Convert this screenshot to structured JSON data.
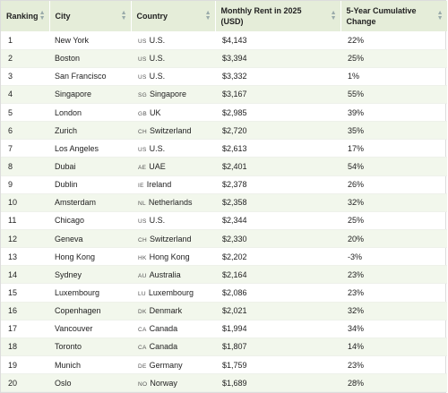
{
  "table": {
    "headers": [
      {
        "label": "Ranking"
      },
      {
        "label": "City"
      },
      {
        "label": "Country"
      },
      {
        "label": "Monthly Rent in 2025 (USD)"
      },
      {
        "label": "5-Year Cumulative Change"
      }
    ],
    "rows": [
      {
        "rank": "1",
        "city": "New York",
        "cc": "US",
        "country": "U.S.",
        "rent": "$4,143",
        "change": "22%"
      },
      {
        "rank": "2",
        "city": "Boston",
        "cc": "US",
        "country": "U.S.",
        "rent": "$3,394",
        "change": "25%"
      },
      {
        "rank": "3",
        "city": "San Francisco",
        "cc": "US",
        "country": "U.S.",
        "rent": "$3,332",
        "change": "1%"
      },
      {
        "rank": "4",
        "city": "Singapore",
        "cc": "SG",
        "country": "Singapore",
        "rent": "$3,167",
        "change": "55%"
      },
      {
        "rank": "5",
        "city": "London",
        "cc": "GB",
        "country": "UK",
        "rent": "$2,985",
        "change": "39%"
      },
      {
        "rank": "6",
        "city": "Zurich",
        "cc": "CH",
        "country": "Switzerland",
        "rent": "$2,720",
        "change": "35%"
      },
      {
        "rank": "7",
        "city": "Los Angeles",
        "cc": "US",
        "country": "U.S.",
        "rent": "$2,613",
        "change": "17%"
      },
      {
        "rank": "8",
        "city": "Dubai",
        "cc": "AE",
        "country": "UAE",
        "rent": "$2,401",
        "change": "54%"
      },
      {
        "rank": "9",
        "city": "Dublin",
        "cc": "IE",
        "country": "Ireland",
        "rent": "$2,378",
        "change": "26%"
      },
      {
        "rank": "10",
        "city": "Amsterdam",
        "cc": "NL",
        "country": "Netherlands",
        "rent": "$2,358",
        "change": "32%"
      },
      {
        "rank": "11",
        "city": "Chicago",
        "cc": "US",
        "country": "U.S.",
        "rent": "$2,344",
        "change": "25%"
      },
      {
        "rank": "12",
        "city": "Geneva",
        "cc": "CH",
        "country": "Switzerland",
        "rent": "$2,330",
        "change": "20%"
      },
      {
        "rank": "13",
        "city": "Hong Kong",
        "cc": "HK",
        "country": "Hong Kong",
        "rent": "$2,202",
        "change": "-3%"
      },
      {
        "rank": "14",
        "city": "Sydney",
        "cc": "AU",
        "country": "Australia",
        "rent": "$2,164",
        "change": "23%"
      },
      {
        "rank": "15",
        "city": "Luxembourg",
        "cc": "LU",
        "country": "Luxembourg",
        "rent": "$2,086",
        "change": "23%"
      },
      {
        "rank": "16",
        "city": "Copenhagen",
        "cc": "DK",
        "country": "Denmark",
        "rent": "$2,021",
        "change": "32%"
      },
      {
        "rank": "17",
        "city": "Vancouver",
        "cc": "CA",
        "country": "Canada",
        "rent": "$1,994",
        "change": "34%"
      },
      {
        "rank": "18",
        "city": "Toronto",
        "cc": "CA",
        "country": "Canada",
        "rent": "$1,807",
        "change": "14%"
      },
      {
        "rank": "19",
        "city": "Munich",
        "cc": "DE",
        "country": "Germany",
        "rent": "$1,759",
        "change": "23%"
      },
      {
        "rank": "20",
        "city": "Oslo",
        "cc": "NO",
        "country": "Norway",
        "rent": "$1,689",
        "change": "28%"
      }
    ]
  },
  "icons": {
    "sort": "sort-arrows-icon"
  },
  "colors": {
    "header_bg": "#e5edd9",
    "alt_row_bg": "#f2f7ec"
  }
}
